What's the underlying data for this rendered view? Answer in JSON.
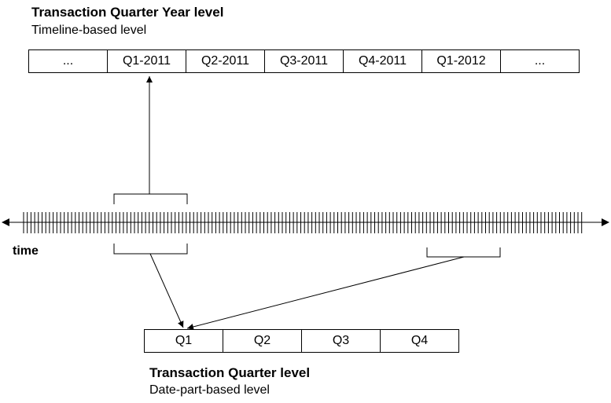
{
  "top": {
    "title": "Transaction Quarter Year level",
    "subtitle": "Timeline-based level",
    "cells": [
      "...",
      "Q1-2011",
      "Q2-2011",
      "Q3-2011",
      "Q4-2011",
      "Q1-2012",
      "..."
    ]
  },
  "timeline": {
    "label": "time"
  },
  "bottom": {
    "title": "Transaction Quarter level",
    "subtitle": "Date-part-based level",
    "cells": [
      "Q1",
      "Q2",
      "Q3",
      "Q4"
    ]
  }
}
